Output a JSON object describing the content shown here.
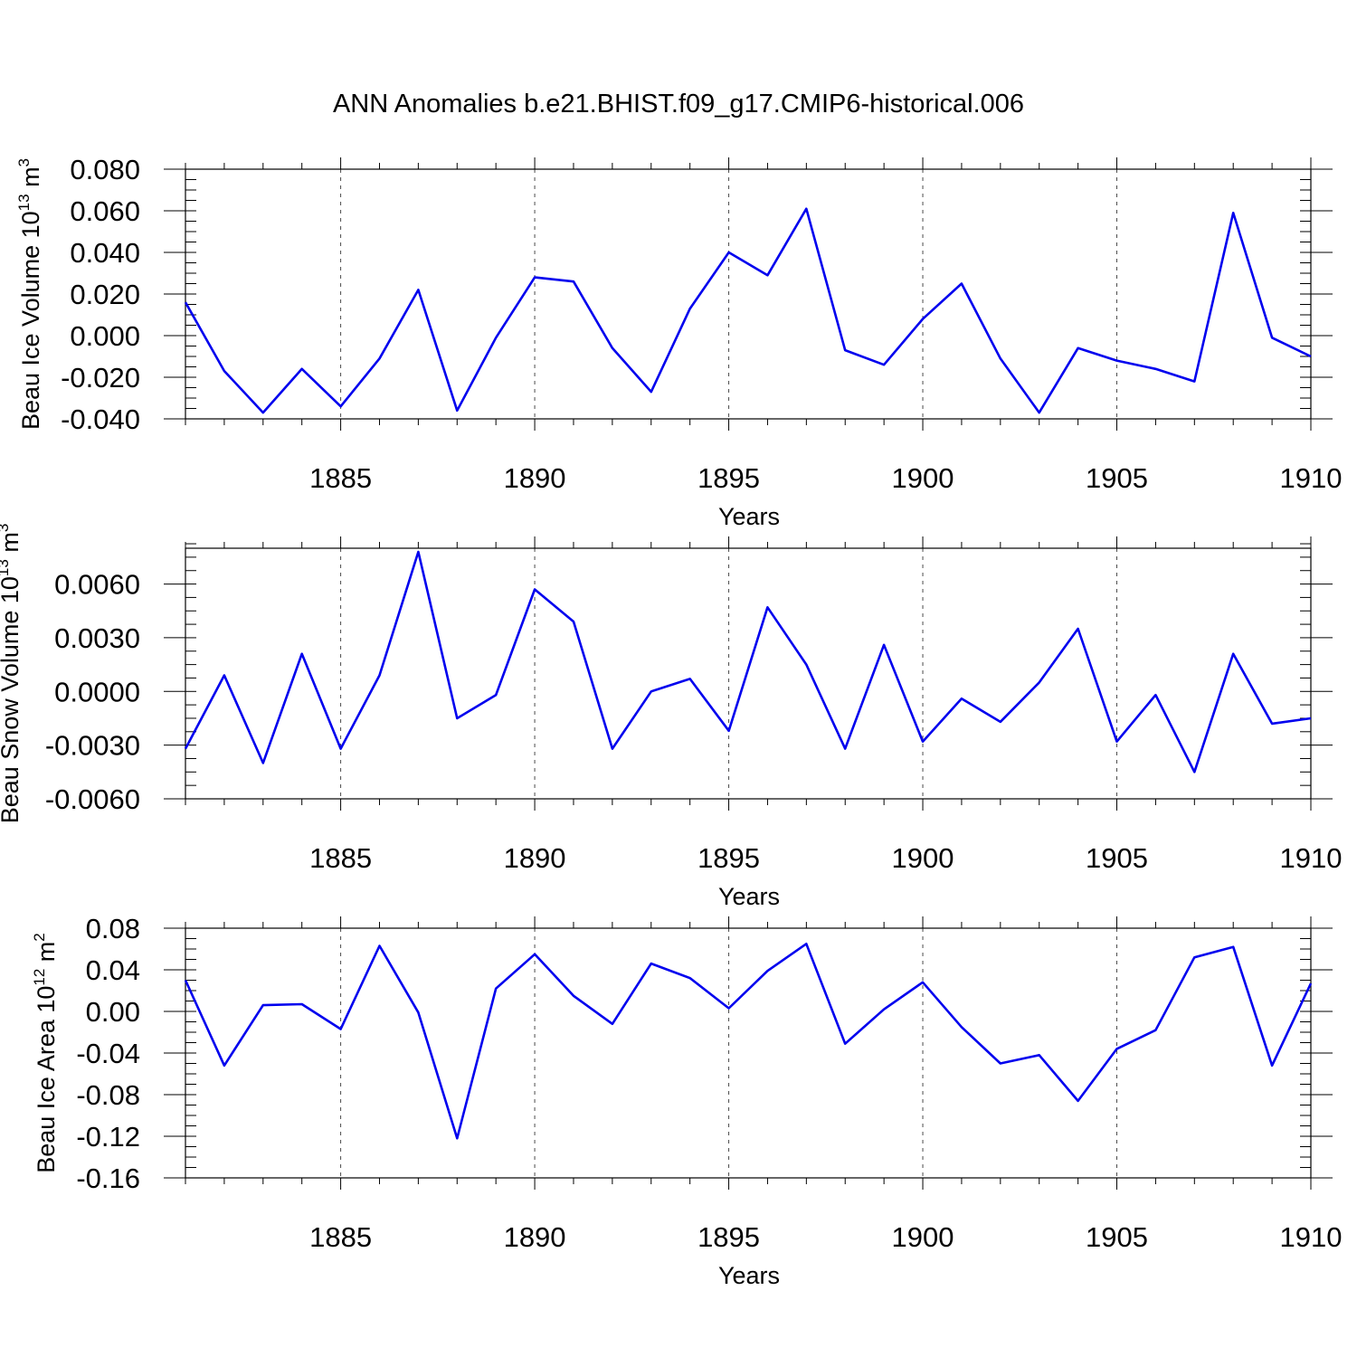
{
  "title": "ANN Anomalies b.e21.BHIST.f09_g17.CMIP6-historical.006",
  "line_color": "#0000ee",
  "chart_data": [
    {
      "type": "line",
      "ylabel": {
        "main": "Beau Ice Volume 10",
        "exponent": "13",
        "unit": " m",
        "unit_exponent": "3"
      },
      "xlabel": "Years",
      "xlim": [
        1881,
        1910
      ],
      "ylim": [
        -0.04,
        0.08
      ],
      "x_ticks": [
        1885,
        1890,
        1895,
        1900,
        1905,
        1910
      ],
      "x_tick_labels": [
        "1885",
        "1890",
        "1895",
        "1900",
        "1905",
        "1910"
      ],
      "y_ticks": [
        -0.04,
        -0.02,
        0.0,
        0.02,
        0.04,
        0.06,
        0.08
      ],
      "y_tick_labels": [
        "-0.040",
        "-0.020",
        "0.000",
        "0.020",
        "0.040",
        "0.060",
        "0.080"
      ],
      "y_minor_step": 0.005,
      "grid": "vertical dashed at major x ticks",
      "x": [
        1881,
        1882,
        1883,
        1884,
        1885,
        1886,
        1887,
        1888,
        1889,
        1890,
        1891,
        1892,
        1893,
        1894,
        1895,
        1896,
        1897,
        1898,
        1899,
        1900,
        1901,
        1902,
        1903,
        1904,
        1905,
        1906,
        1907,
        1908,
        1909,
        1910
      ],
      "values": [
        0.016,
        -0.017,
        -0.037,
        -0.016,
        -0.034,
        -0.011,
        0.022,
        -0.036,
        -0.001,
        0.028,
        0.026,
        -0.006,
        -0.027,
        0.013,
        0.04,
        0.029,
        0.061,
        -0.007,
        -0.014,
        0.008,
        0.025,
        -0.011,
        -0.037,
        -0.006,
        -0.012,
        -0.016,
        -0.022,
        0.059,
        -0.001,
        -0.01
      ]
    },
    {
      "type": "line",
      "ylabel": {
        "main": "Beau Snow Volume 10",
        "exponent": "13",
        "unit": " m",
        "unit_exponent": "3"
      },
      "xlabel": "Years",
      "xlim": [
        1881,
        1910
      ],
      "ylim": [
        -0.006,
        0.008
      ],
      "x_ticks": [
        1885,
        1890,
        1895,
        1900,
        1905,
        1910
      ],
      "x_tick_labels": [
        "1885",
        "1890",
        "1895",
        "1900",
        "1905",
        "1910"
      ],
      "y_ticks": [
        -0.006,
        -0.003,
        0.0,
        0.003,
        0.006
      ],
      "y_tick_labels": [
        "-0.0060",
        "-0.0030",
        "0.0000",
        "0.0030",
        "0.0060"
      ],
      "y_minor_step": 0.00075,
      "grid": "vertical dashed at major x ticks",
      "x": [
        1881,
        1882,
        1883,
        1884,
        1885,
        1886,
        1887,
        1888,
        1889,
        1890,
        1891,
        1892,
        1893,
        1894,
        1895,
        1896,
        1897,
        1898,
        1899,
        1900,
        1901,
        1902,
        1903,
        1904,
        1905,
        1906,
        1907,
        1908,
        1909,
        1910
      ],
      "values": [
        -0.0032,
        0.0009,
        -0.004,
        0.0021,
        -0.0032,
        0.0009,
        0.0078,
        -0.0015,
        -0.0002,
        0.0057,
        0.0039,
        -0.0032,
        0.0,
        0.0007,
        -0.0022,
        0.0047,
        0.0015,
        -0.0032,
        0.0026,
        -0.0028,
        -0.0004,
        -0.0017,
        0.0005,
        0.0035,
        -0.0028,
        -0.0002,
        -0.0045,
        0.0021,
        -0.0018,
        -0.0015
      ]
    },
    {
      "type": "line",
      "ylabel": {
        "main": "Beau Ice Area 10",
        "exponent": "12",
        "unit": " m",
        "unit_exponent": "2"
      },
      "xlabel": "Years",
      "xlim": [
        1881,
        1910
      ],
      "ylim": [
        -0.16,
        0.08
      ],
      "x_ticks": [
        1885,
        1890,
        1895,
        1900,
        1905,
        1910
      ],
      "x_tick_labels": [
        "1885",
        "1890",
        "1895",
        "1900",
        "1905",
        "1910"
      ],
      "y_ticks": [
        -0.16,
        -0.12,
        -0.08,
        -0.04,
        0.0,
        0.04,
        0.08
      ],
      "y_tick_labels": [
        "-0.16",
        "-0.12",
        "-0.08",
        "-0.04",
        "0.00",
        "0.04",
        "0.08"
      ],
      "y_minor_step": 0.01,
      "grid": "vertical dashed at major x ticks",
      "x": [
        1881,
        1882,
        1883,
        1884,
        1885,
        1886,
        1887,
        1888,
        1889,
        1890,
        1891,
        1892,
        1893,
        1894,
        1895,
        1896,
        1897,
        1898,
        1899,
        1900,
        1901,
        1902,
        1903,
        1904,
        1905,
        1906,
        1907,
        1908,
        1909,
        1910
      ],
      "values": [
        0.03,
        -0.052,
        0.006,
        0.007,
        -0.017,
        0.063,
        -0.001,
        -0.122,
        0.022,
        0.055,
        0.015,
        -0.012,
        0.046,
        0.032,
        0.003,
        0.039,
        0.065,
        -0.031,
        0.002,
        0.028,
        -0.015,
        -0.05,
        -0.042,
        -0.086,
        -0.036,
        -0.018,
        0.052,
        0.062,
        -0.052,
        0.027
      ]
    }
  ]
}
